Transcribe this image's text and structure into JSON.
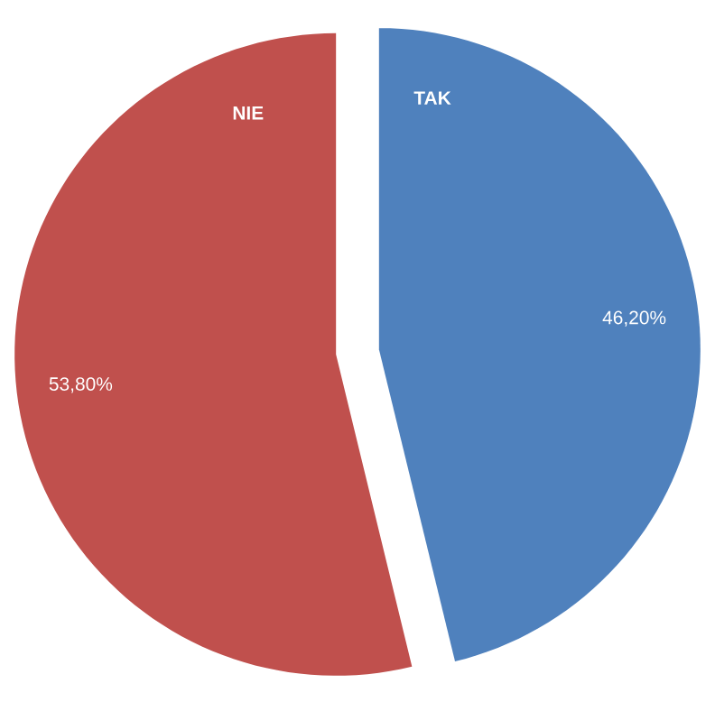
{
  "chart_data": {
    "type": "pie",
    "categories": [
      "TAK",
      "NIE"
    ],
    "values": [
      46.2,
      53.8
    ],
    "colors": [
      "#4f81bd",
      "#c0504d"
    ],
    "value_labels": [
      "46,20%",
      "53,80%"
    ]
  }
}
